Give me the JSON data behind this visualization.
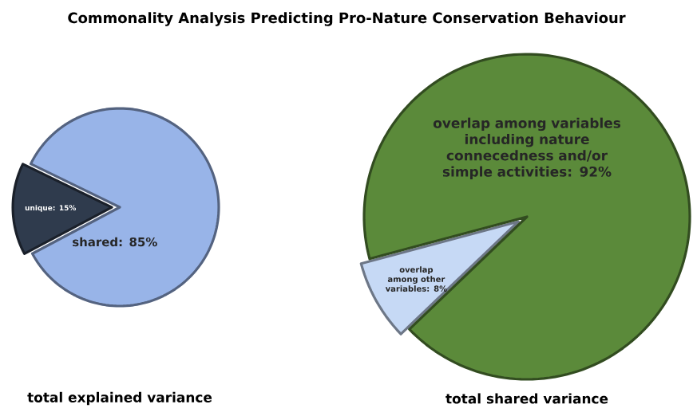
{
  "chart_data": [
    {
      "type": "pie",
      "title": "Commonality Analysis Predicting Pro-Nature Conservation Behaviour",
      "xlabel": "total explained variance",
      "categories": [
        "unique: 15%",
        "shared: 85%"
      ],
      "values": [
        15,
        85
      ],
      "colors": [
        "#2f3b4d",
        "#98b4e8"
      ]
    },
    {
      "type": "pie",
      "xlabel": "total shared variance",
      "categories": [
        "overlap among other variables: 8%",
        "overlap among variables including nature connecedness and/or simple activities: 92%"
      ],
      "values": [
        8,
        92
      ],
      "colors": [
        "#c6d9f5",
        "#5b8a3a"
      ]
    }
  ]
}
